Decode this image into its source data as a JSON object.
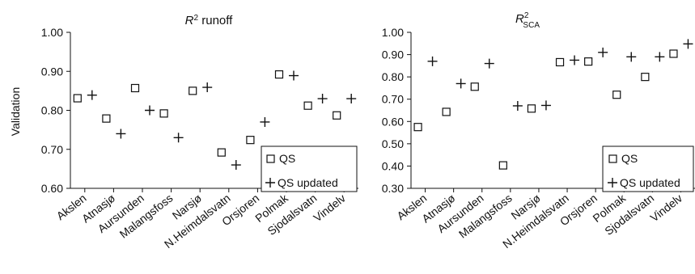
{
  "chart_data": [
    {
      "type": "scatter",
      "title_main": "R",
      "title_sup": "2",
      "title_rest": " runoff",
      "ylabel": "Validation",
      "ylim": [
        0.6,
        1.0
      ],
      "yticks": [
        0.6,
        0.7,
        0.8,
        0.9,
        1.0
      ],
      "ytick_labels": [
        "0.60",
        "0.70",
        "0.80",
        "0.90",
        "1.00"
      ],
      "categories": [
        "Akslen",
        "Atnasjø",
        "Aursunden",
        "Malangsfoss",
        "Narsjø",
        "N.Heimdalsvatn",
        "Orsjoren",
        "Polmak",
        "Sjodalsvatn",
        "Vindelv"
      ],
      "series": [
        {
          "name": "QS",
          "marker": "square",
          "values": [
            0.831,
            0.779,
            0.857,
            0.792,
            0.85,
            0.692,
            0.724,
            0.892,
            0.812,
            0.787
          ]
        },
        {
          "name": "QS updated",
          "marker": "plus",
          "values": [
            0.839,
            0.74,
            0.8,
            0.73,
            0.859,
            0.66,
            0.77,
            0.889,
            0.83,
            0.83
          ]
        }
      ],
      "legend": {
        "entries": [
          "QS",
          "QS updated"
        ],
        "placement": "bottom-right"
      }
    },
    {
      "type": "scatter",
      "title_main": "R",
      "title_sup": "2",
      "title_sub": "SCA",
      "ylabel": "",
      "ylim": [
        0.3,
        1.0
      ],
      "yticks": [
        0.3,
        0.4,
        0.5,
        0.6,
        0.7,
        0.8,
        0.9,
        1.0
      ],
      "ytick_labels": [
        "0.30",
        "0.40",
        "0.50",
        "0.60",
        "0.70",
        "0.80",
        "0.90",
        "1.00"
      ],
      "categories": [
        "Akslen",
        "Atnasjø",
        "Aursunden",
        "Malangsfoss",
        "Narsjø",
        "N.Heimdalsvatn",
        "Orsjoren",
        "Polmak",
        "Sjodalsvatn",
        "Vindelv"
      ],
      "series": [
        {
          "name": "QS",
          "marker": "square",
          "values": [
            0.575,
            0.643,
            0.756,
            0.403,
            0.658,
            0.866,
            0.869,
            0.72,
            0.8,
            0.904
          ]
        },
        {
          "name": "QS updated",
          "marker": "plus",
          "values": [
            0.87,
            0.77,
            0.86,
            0.67,
            0.672,
            0.875,
            0.91,
            0.89,
            0.89,
            0.948
          ]
        }
      ],
      "legend": {
        "entries": [
          "QS",
          "QS updated"
        ],
        "placement": "bottom-right"
      }
    }
  ]
}
